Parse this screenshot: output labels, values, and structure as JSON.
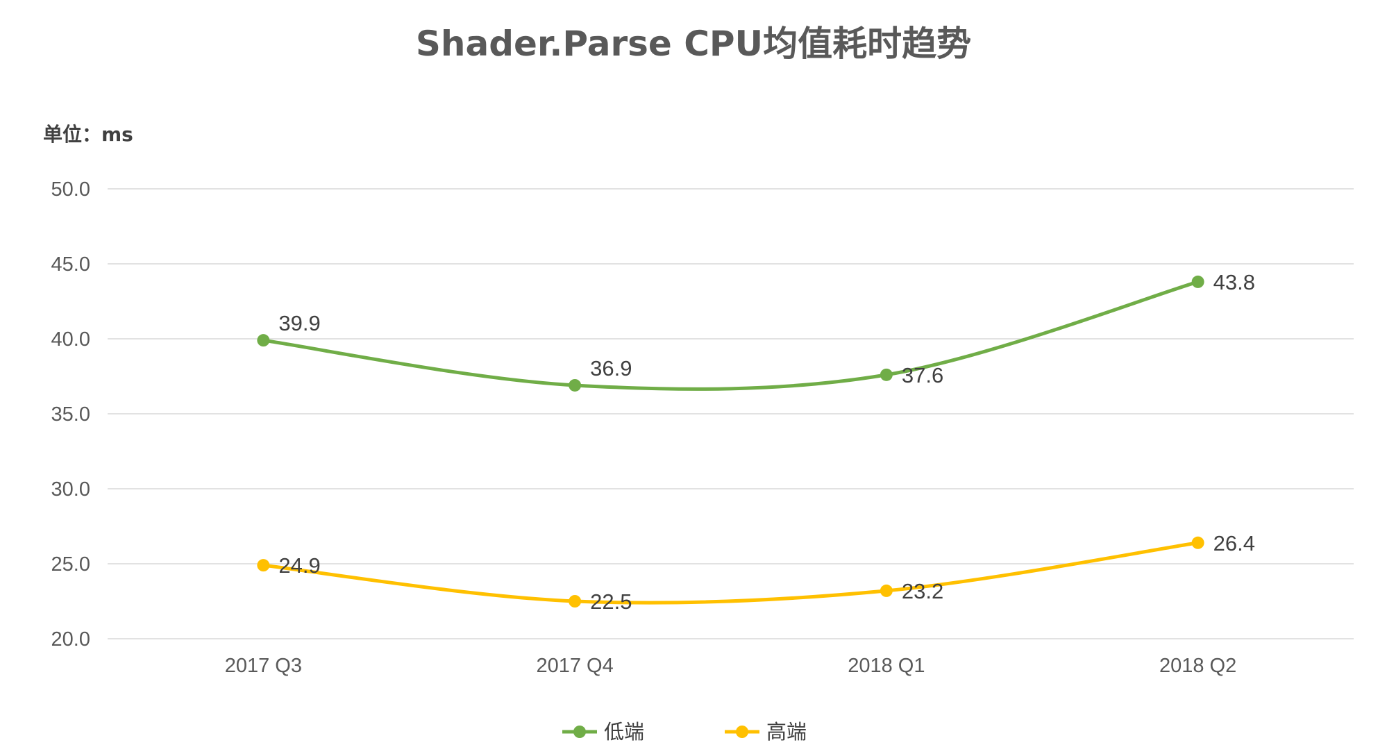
{
  "chart_data": {
    "type": "line",
    "title": "Shader.Parse CPU均值耗时趋势",
    "unit_label": "单位：ms",
    "categories": [
      "2017 Q3",
      "2017 Q4",
      "2018 Q1",
      "2018 Q2"
    ],
    "ylim": [
      20,
      50
    ],
    "yticks": [
      "20.0",
      "25.0",
      "30.0",
      "35.0",
      "40.0",
      "45.0",
      "50.0"
    ],
    "grid": true,
    "smooth": true,
    "legend_position": "bottom",
    "series": [
      {
        "name": "低端",
        "color": "#70ad47",
        "values": [
          39.9,
          36.9,
          37.6,
          43.8
        ],
        "labels": [
          "39.9",
          "36.9",
          "37.6",
          "43.8"
        ]
      },
      {
        "name": "高端",
        "color": "#ffc000",
        "values": [
          24.9,
          22.5,
          23.2,
          26.4
        ],
        "labels": [
          "24.9",
          "22.5",
          "23.2",
          "26.4"
        ]
      }
    ]
  }
}
